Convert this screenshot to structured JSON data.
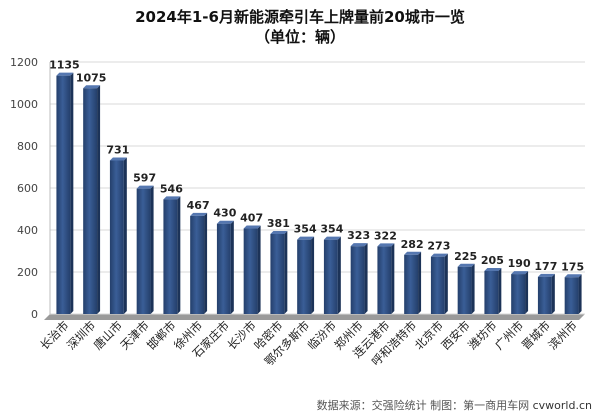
{
  "chart_data": {
    "type": "bar",
    "title": "2024年1-6月新能源牵引车上牌量前20城市一览",
    "subtitle": "（单位：辆）",
    "categories": [
      "长治市",
      "深圳市",
      "唐山市",
      "天津市",
      "邯郸市",
      "徐州市",
      "石家庄市",
      "长沙市",
      "哈密市",
      "鄂尔多斯市",
      "临汾市",
      "郑州市",
      "连云港市",
      "呼和浩特市",
      "北京市",
      "西安市",
      "潍坊市",
      "广州市",
      "晋城市",
      "滨州市"
    ],
    "values": [
      1135,
      1075,
      731,
      597,
      546,
      467,
      430,
      407,
      381,
      354,
      354,
      323,
      322,
      282,
      273,
      225,
      205,
      190,
      177,
      175
    ],
    "ylim": [
      0,
      1200
    ],
    "yticks": [
      0,
      200,
      400,
      600,
      800,
      1000,
      1200
    ],
    "xlabel": "",
    "ylabel": "",
    "grid": true,
    "legend": "none",
    "bar_color": "#3a5e97",
    "bar_dark": "#243f6b",
    "floor_color": "#9a9a9a"
  },
  "footer": {
    "source": "数据来源：交强险统计  制图：",
    "logo_text": "第一商用车网",
    "domain": "cvworld.cn"
  }
}
